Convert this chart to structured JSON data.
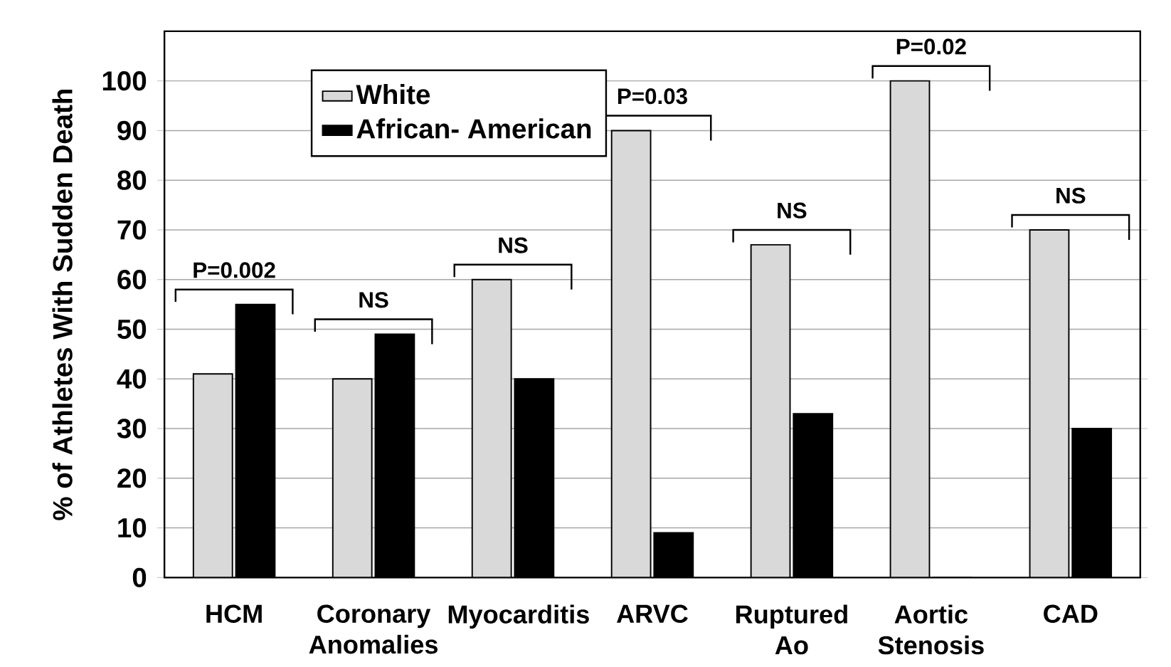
{
  "chart_data": {
    "type": "bar",
    "ylabel": "% of Athletes With Sudden Death",
    "categories": [
      "HCM",
      "Coronary Anomalies",
      "Myocarditis",
      "ARVC",
      "Ruptured Ao",
      "Aortic Stenosis",
      "CAD"
    ],
    "series": [
      {
        "name": "White",
        "color": "#d9d9d9",
        "values": [
          41,
          40,
          60,
          90,
          67,
          100,
          70
        ]
      },
      {
        "name": "African- American",
        "color": "#000000",
        "values": [
          55,
          49,
          40,
          9,
          33,
          0,
          30
        ]
      }
    ],
    "ylim": [
      0,
      110
    ],
    "yticks": [
      0,
      10,
      20,
      30,
      40,
      50,
      60,
      70,
      80,
      90,
      100
    ],
    "grid": "y",
    "legend": "top left",
    "annotations": [
      "P=0.002",
      "NS",
      "NS",
      "P=0.03",
      "NS",
      "P=0.02",
      "NS"
    ]
  }
}
